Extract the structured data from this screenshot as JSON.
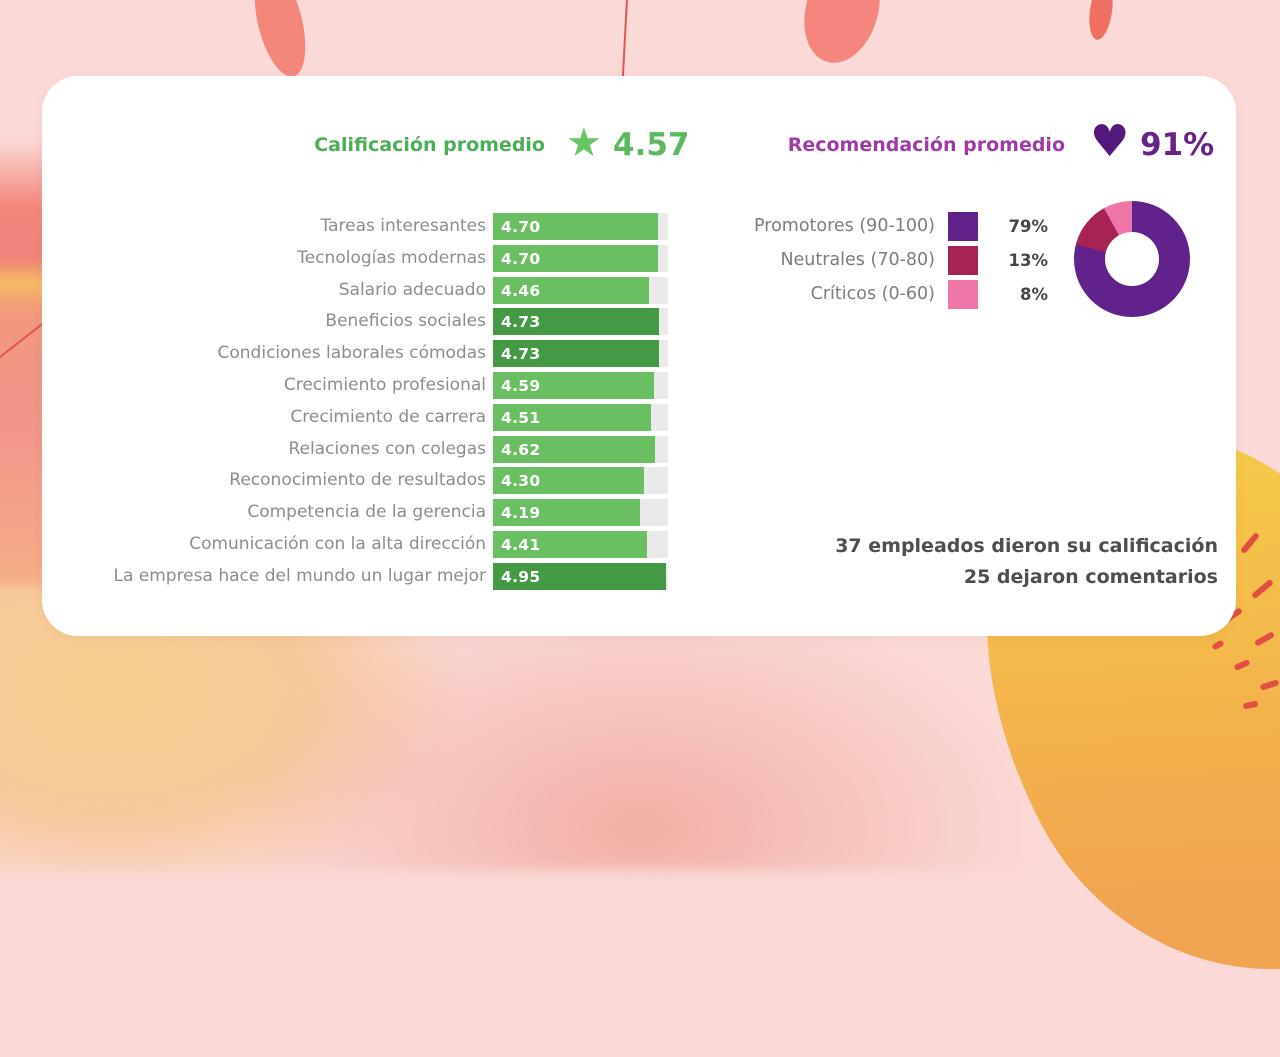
{
  "header": {
    "rating": {
      "label": "Calificación promedio",
      "value": "4.57",
      "label_color": "#4caf57",
      "value_color": "#5cb95f",
      "star_color": "#6ac466"
    },
    "recommendation": {
      "label": "Recomendación promedio",
      "value": "91%",
      "label_color": "#9f3ba9",
      "value_color": "#692385",
      "heart_color": "#541a7b"
    }
  },
  "chart_data": [
    {
      "type": "bar",
      "orientation": "horizontal",
      "title": "Calificación promedio",
      "categories": [
        "Tareas interesantes",
        "Tecnologías modernas",
        "Salario adecuado",
        "Beneficios sociales",
        "Condiciones laborales cómodas",
        "Crecimiento profesional",
        "Crecimiento de carrera",
        "Relaciones con colegas",
        "Reconocimiento de resultados",
        "Competencia de la gerencia",
        "Comunicación con la alta dirección",
        "La empresa hace del mundo un lugar mejor"
      ],
      "values": [
        4.7,
        4.7,
        4.46,
        4.73,
        4.73,
        4.59,
        4.51,
        4.62,
        4.3,
        4.19,
        4.41,
        4.95
      ],
      "value_labels": [
        "4.70",
        "4.70",
        "4.46",
        "4.73",
        "4.73",
        "4.59",
        "4.51",
        "4.62",
        "4.30",
        "4.19",
        "4.41",
        "4.95"
      ],
      "xlim": [
        0,
        5
      ],
      "bar_color": "#6abf62",
      "highlight_color": "#449a44",
      "highlight_indices": [
        3,
        4,
        11
      ],
      "track_color": "#eaeaea",
      "value_text_color": "#ffffff",
      "category_text_color": "#8d8d8d",
      "grid": false
    },
    {
      "type": "pie",
      "subtype": "donut",
      "title": "Recomendación promedio",
      "labels": [
        "Promotores (90-100)",
        "Neutrales (70-80)",
        "Críticos (0-60)"
      ],
      "values": [
        79,
        13,
        8
      ],
      "value_labels": [
        "79%",
        "13%",
        "8%"
      ],
      "colors": [
        "#61228c",
        "#a82355",
        "#ef76a8"
      ],
      "legend_position": "left",
      "start_angle_deg": 0,
      "direction": "clockwise"
    }
  ],
  "icons": {
    "star": "★",
    "heart": "♥"
  },
  "footer": {
    "line1": "37 empleados dieron su calificación",
    "line2": "25 dejaron comentarios"
  }
}
